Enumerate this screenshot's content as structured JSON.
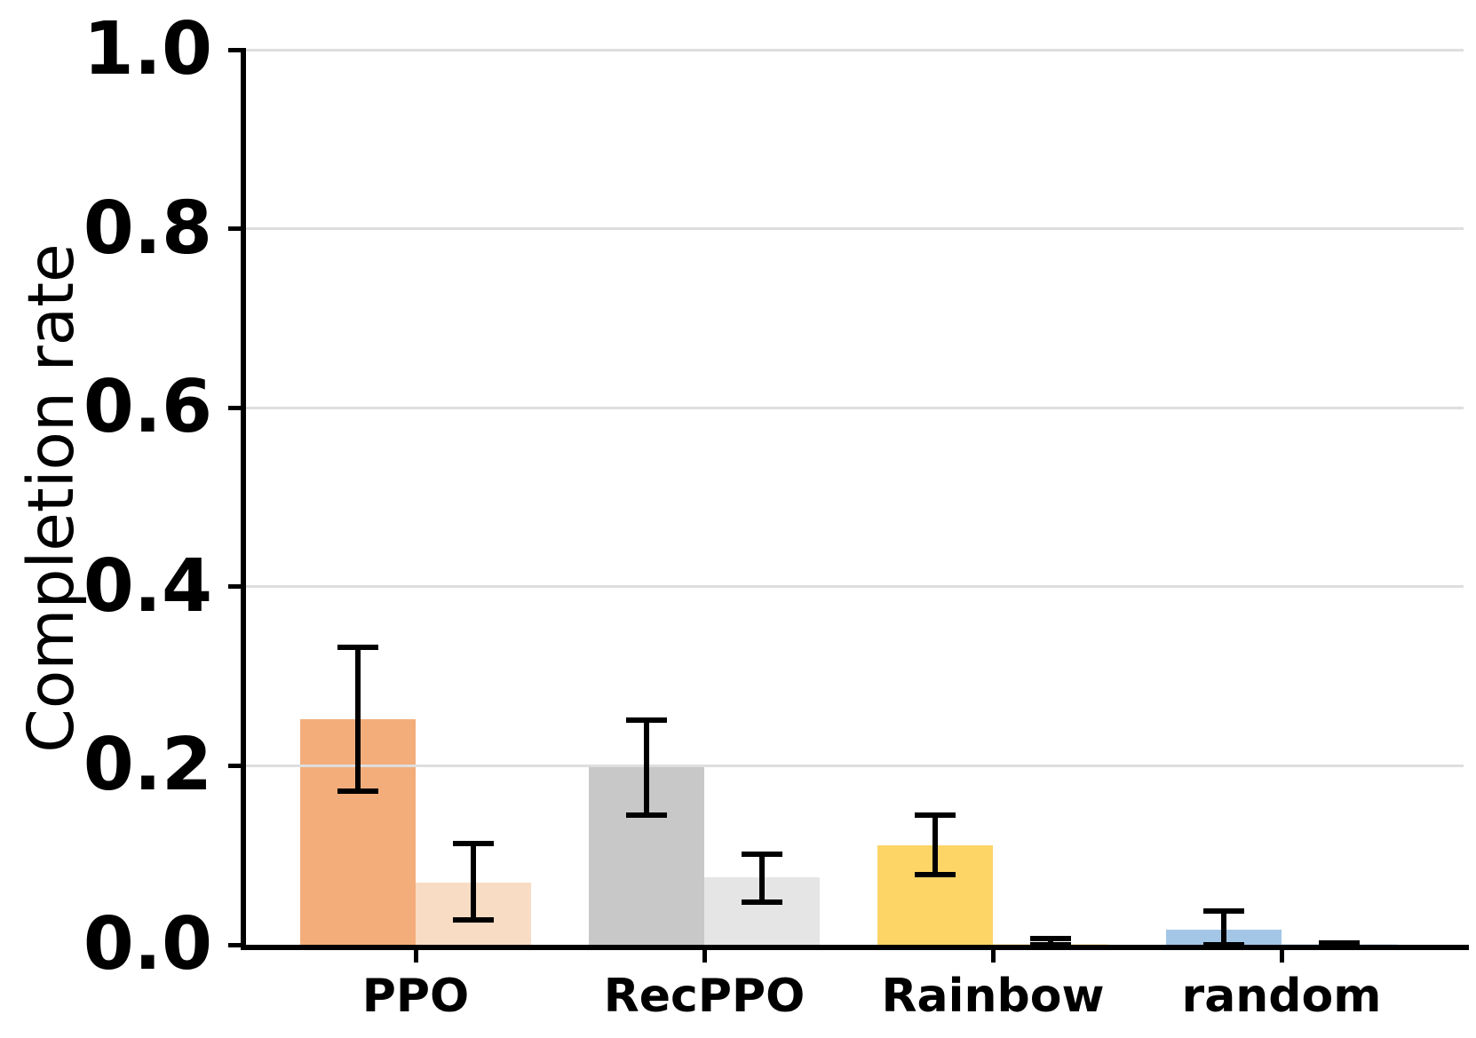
{
  "chart_data": {
    "type": "bar",
    "title": "",
    "xlabel": "",
    "ylabel": "Completion rate",
    "categories": [
      "PPO",
      "RecPPO",
      "Rainbow",
      "random"
    ],
    "ylim": [
      0.0,
      1.0
    ],
    "yticks": [
      0.0,
      0.2,
      0.4,
      0.6,
      0.8,
      1.0
    ],
    "ytick_labels": [
      "0.0",
      "0.2",
      "0.4",
      "0.6",
      "0.8",
      "1.0"
    ],
    "grid": true,
    "legend": "none",
    "series": [
      {
        "name": "primary",
        "values": [
          0.252,
          0.2,
          0.111,
          0.017
        ],
        "err_low": [
          0.172,
          0.145,
          0.078,
          0.0
        ],
        "err_high": [
          0.332,
          0.251,
          0.145,
          0.038
        ],
        "colors": [
          "#F3AD7B",
          "#C8C8C8",
          "#FCD566",
          "#A3C6E6"
        ]
      },
      {
        "name": "secondary",
        "values": [
          0.069,
          0.075,
          0.001,
          0.001
        ],
        "err_low": [
          0.028,
          0.048,
          0.0,
          0.0
        ],
        "err_high": [
          0.113,
          0.101,
          0.007,
          0.002
        ],
        "colors": [
          "#F8DCC4",
          "#E5E5E5",
          "#FDEBB7",
          "#D9E8F5"
        ]
      }
    ],
    "colors": {
      "grid": "#DEDEDE",
      "axis": "#000000",
      "error_bar": "#000000",
      "background": "#FFFFFF"
    }
  }
}
